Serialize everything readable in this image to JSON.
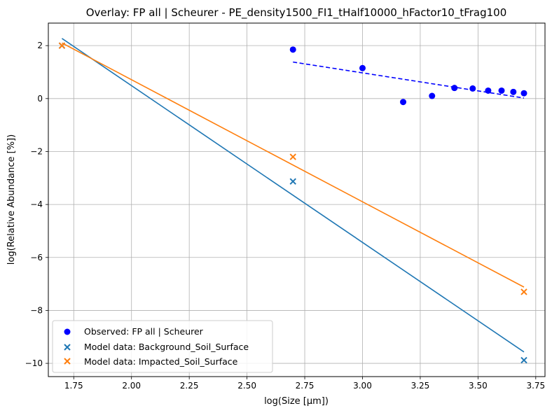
{
  "chart_data": {
    "type": "scatter",
    "title": "Overlay: FP all | Scheurer - PE_density1500_FI1_tHalf10000_hFactor10_tFrag100",
    "xlabel": "log(Size [μm])",
    "ylabel": "log(Relative Abundance [%])",
    "xlim": [
      1.64,
      3.79
    ],
    "ylim": [
      -10.5,
      2.85
    ],
    "xticks": [
      1.75,
      2.0,
      2.25,
      2.5,
      2.75,
      3.0,
      3.25,
      3.5,
      3.75
    ],
    "xtick_labels": [
      "1.75",
      "2.00",
      "2.25",
      "2.50",
      "2.75",
      "3.00",
      "3.25",
      "3.50",
      "3.75"
    ],
    "yticks": [
      -10,
      -8,
      -6,
      -4,
      -2,
      0,
      2
    ],
    "ytick_labels": [
      "−10",
      "−8",
      "−6",
      "−4",
      "−2",
      "0",
      "2"
    ],
    "grid": true,
    "legend_position": "lower-left",
    "series": [
      {
        "name": "Observed: FP all | Scheurer",
        "kind": "scatter",
        "marker": "circle",
        "color": "#0000ff",
        "x": [
          2.699,
          3.0,
          3.176,
          3.301,
          3.398,
          3.477,
          3.544,
          3.602,
          3.653,
          3.699
        ],
        "y": [
          1.85,
          1.15,
          -0.13,
          0.1,
          0.4,
          0.38,
          0.3,
          0.3,
          0.25,
          0.2
        ]
      },
      {
        "name": "Model data: Background_Soil_Surface",
        "kind": "scatter",
        "marker": "x",
        "color": "#1f77b4",
        "x": [
          1.699,
          2.699,
          3.699
        ],
        "y": [
          2.0,
          -3.13,
          -9.88
        ]
      },
      {
        "name": "Model data: Impacted_Soil_Surface",
        "kind": "scatter",
        "marker": "x",
        "color": "#ff7f0e",
        "x": [
          1.699,
          2.699,
          3.699
        ],
        "y": [
          2.0,
          -2.2,
          -7.3
        ]
      }
    ],
    "fit_lines": [
      {
        "kind": "line",
        "style": "dashed",
        "color": "#0000ff",
        "x": [
          2.699,
          3.699
        ],
        "y": [
          1.38,
          0.02
        ]
      },
      {
        "kind": "line",
        "style": "solid",
        "color": "#1f77b4",
        "x": [
          1.699,
          3.699
        ],
        "y": [
          2.27,
          -9.57
        ]
      },
      {
        "kind": "line",
        "style": "solid",
        "color": "#ff7f0e",
        "x": [
          1.699,
          3.699
        ],
        "y": [
          2.1,
          -7.12
        ]
      }
    ]
  }
}
